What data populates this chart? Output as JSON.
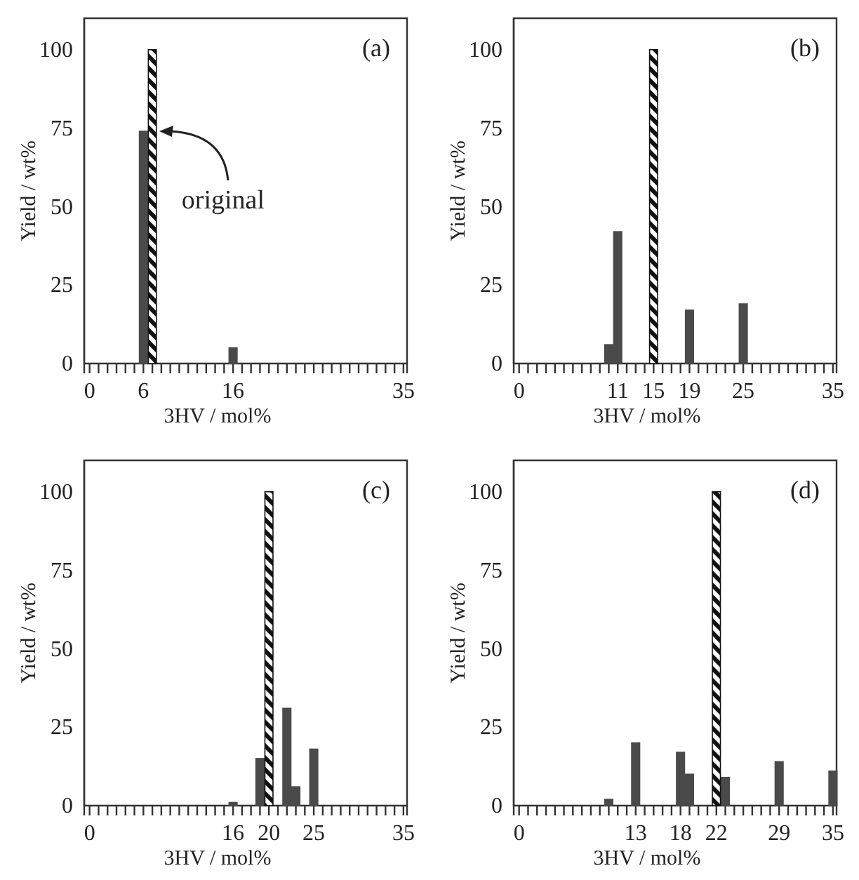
{
  "chart_data": [
    {
      "type": "bar",
      "title": "(a)",
      "xlabel": "3HV / mol%",
      "ylabel": "Yield / wt%",
      "xlim": [
        -0.6,
        35.4
      ],
      "ylim": [
        0,
        110
      ],
      "yticks": [
        0,
        25,
        50,
        75,
        100
      ],
      "xticks": [
        0,
        {
          "value": 1,
          "label": null
        },
        {
          "value": 2,
          "label": null
        },
        {
          "value": 3,
          "label": null
        },
        {
          "value": 4,
          "label": null
        },
        {
          "value": 5,
          "label": null
        },
        6,
        {
          "value": 7,
          "label": null
        },
        {
          "value": 8,
          "label": null
        },
        {
          "value": 9,
          "label": null
        },
        {
          "value": 10,
          "label": null
        },
        {
          "value": 11,
          "label": null
        },
        {
          "value": 12,
          "label": null
        },
        {
          "value": 13,
          "label": null
        },
        {
          "value": 14,
          "label": null
        },
        {
          "value": 15,
          "label": null
        },
        16,
        {
          "value": 17,
          "label": null
        },
        {
          "value": 18,
          "label": null
        },
        {
          "value": 19,
          "label": null
        },
        {
          "value": 20,
          "label": null
        },
        {
          "value": 21,
          "label": null
        },
        {
          "value": 22,
          "label": null
        },
        {
          "value": 23,
          "label": null
        },
        {
          "value": 24,
          "label": null
        },
        {
          "value": 25,
          "label": null
        },
        {
          "value": 26,
          "label": null
        },
        {
          "value": 27,
          "label": null
        },
        {
          "value": 28,
          "label": null
        },
        {
          "value": 29,
          "label": null
        },
        {
          "value": 30,
          "label": null
        },
        {
          "value": 31,
          "label": null
        },
        {
          "value": 32,
          "label": null
        },
        {
          "value": 33,
          "label": null
        },
        {
          "value": 34,
          "label": null
        },
        35
      ],
      "series": [
        {
          "color": "#4a4a4a",
          "x": [
            6,
            16
          ],
          "values": [
            74,
            5
          ]
        },
        {
          "color": "#111111",
          "x": [
            7
          ],
          "values": [
            100
          ]
        }
      ],
      "annotations": [
        {
          "text": "original",
          "x": 7,
          "y": 74
        }
      ]
    },
    {
      "type": "bar",
      "title": "(b)",
      "xlabel": "3HV / mol%",
      "ylabel": "Yield / wt%",
      "xlim": [
        -0.6,
        35.4
      ],
      "ylim": [
        0,
        110
      ],
      "yticks": [
        0,
        25,
        50,
        75,
        100
      ],
      "xticks": [
        0,
        {
          "value": 1,
          "label": null
        },
        {
          "value": 2,
          "label": null
        },
        {
          "value": 3,
          "label": null
        },
        {
          "value": 4,
          "label": null
        },
        {
          "value": 5,
          "label": null
        },
        {
          "value": 6,
          "label": null
        },
        {
          "value": 7,
          "label": null
        },
        {
          "value": 8,
          "label": null
        },
        {
          "value": 9,
          "label": null
        },
        {
          "value": 10,
          "label": null
        },
        11,
        {
          "value": 12,
          "label": null
        },
        {
          "value": 13,
          "label": null
        },
        {
          "value": 14,
          "label": null
        },
        15,
        {
          "value": 16,
          "label": null
        },
        {
          "value": 17,
          "label": null
        },
        {
          "value": 18,
          "label": null
        },
        19,
        {
          "value": 20,
          "label": null
        },
        {
          "value": 21,
          "label": null
        },
        {
          "value": 22,
          "label": null
        },
        {
          "value": 23,
          "label": null
        },
        {
          "value": 24,
          "label": null
        },
        25,
        {
          "value": 26,
          "label": null
        },
        {
          "value": 27,
          "label": null
        },
        {
          "value": 28,
          "label": null
        },
        {
          "value": 29,
          "label": null
        },
        {
          "value": 30,
          "label": null
        },
        {
          "value": 31,
          "label": null
        },
        {
          "value": 32,
          "label": null
        },
        {
          "value": 33,
          "label": null
        },
        {
          "value": 34,
          "label": null
        },
        35
      ],
      "series": [
        {
          "color": "#4a4a4a",
          "x": [
            10,
            11,
            19,
            25
          ],
          "values": [
            6,
            42,
            17,
            19
          ]
        },
        {
          "color": "#111111",
          "x": [
            15
          ],
          "values": [
            100
          ]
        }
      ]
    },
    {
      "type": "bar",
      "title": "(c)",
      "xlabel": "3HV / mol%",
      "ylabel": "Yield / wt%",
      "xlim": [
        -0.6,
        35.4
      ],
      "ylim": [
        0,
        110
      ],
      "yticks": [
        0,
        25,
        50,
        75,
        100
      ],
      "xticks": [
        0,
        {
          "value": 1,
          "label": null
        },
        {
          "value": 2,
          "label": null
        },
        {
          "value": 3,
          "label": null
        },
        {
          "value": 4,
          "label": null
        },
        {
          "value": 5,
          "label": null
        },
        {
          "value": 6,
          "label": null
        },
        {
          "value": 7,
          "label": null
        },
        {
          "value": 8,
          "label": null
        },
        {
          "value": 9,
          "label": null
        },
        {
          "value": 10,
          "label": null
        },
        {
          "value": 11,
          "label": null
        },
        {
          "value": 12,
          "label": null
        },
        {
          "value": 13,
          "label": null
        },
        {
          "value": 14,
          "label": null
        },
        {
          "value": 15,
          "label": null
        },
        16,
        {
          "value": 17,
          "label": null
        },
        {
          "value": 18,
          "label": null
        },
        {
          "value": 19,
          "label": null
        },
        20,
        {
          "value": 21,
          "label": null
        },
        {
          "value": 22,
          "label": null
        },
        {
          "value": 23,
          "label": null
        },
        {
          "value": 24,
          "label": null
        },
        25,
        {
          "value": 26,
          "label": null
        },
        {
          "value": 27,
          "label": null
        },
        {
          "value": 28,
          "label": null
        },
        {
          "value": 29,
          "label": null
        },
        {
          "value": 30,
          "label": null
        },
        {
          "value": 31,
          "label": null
        },
        {
          "value": 32,
          "label": null
        },
        {
          "value": 33,
          "label": null
        },
        {
          "value": 34,
          "label": null
        },
        35
      ],
      "series": [
        {
          "color": "#4a4a4a",
          "x": [
            16,
            19,
            22,
            23,
            25
          ],
          "values": [
            1,
            15,
            31,
            6,
            18
          ]
        },
        {
          "color": "#111111",
          "x": [
            20
          ],
          "values": [
            100
          ]
        }
      ]
    },
    {
      "type": "bar",
      "title": "(d)",
      "xlabel": "3HV / mol%",
      "ylabel": "Yield / wt%",
      "xlim": [
        -0.6,
        35.4
      ],
      "ylim": [
        0,
        110
      ],
      "yticks": [
        0,
        25,
        50,
        75,
        100
      ],
      "xticks": [
        0,
        {
          "value": 1,
          "label": null
        },
        {
          "value": 2,
          "label": null
        },
        {
          "value": 3,
          "label": null
        },
        {
          "value": 4,
          "label": null
        },
        {
          "value": 5,
          "label": null
        },
        {
          "value": 6,
          "label": null
        },
        {
          "value": 7,
          "label": null
        },
        {
          "value": 8,
          "label": null
        },
        {
          "value": 9,
          "label": null
        },
        {
          "value": 10,
          "label": null
        },
        {
          "value": 11,
          "label": null
        },
        {
          "value": 12,
          "label": null
        },
        13,
        {
          "value": 14,
          "label": null
        },
        {
          "value": 15,
          "label": null
        },
        {
          "value": 16,
          "label": null
        },
        {
          "value": 17,
          "label": null
        },
        18,
        {
          "value": 19,
          "label": null
        },
        {
          "value": 20,
          "label": null
        },
        {
          "value": 21,
          "label": null
        },
        22,
        {
          "value": 23,
          "label": null
        },
        {
          "value": 24,
          "label": null
        },
        {
          "value": 25,
          "label": null
        },
        {
          "value": 26,
          "label": null
        },
        {
          "value": 27,
          "label": null
        },
        {
          "value": 28,
          "label": null
        },
        29,
        {
          "value": 30,
          "label": null
        },
        {
          "value": 31,
          "label": null
        },
        {
          "value": 32,
          "label": null
        },
        {
          "value": 33,
          "label": null
        },
        {
          "value": 34,
          "label": null
        },
        35
      ],
      "series": [
        {
          "color": "#4a4a4a",
          "x": [
            10,
            13,
            18,
            19,
            23,
            29,
            35
          ],
          "values": [
            2,
            20,
            17,
            10,
            9,
            14,
            11
          ]
        },
        {
          "color": "#111111",
          "x": [
            22
          ],
          "values": [
            100
          ]
        }
      ]
    }
  ]
}
